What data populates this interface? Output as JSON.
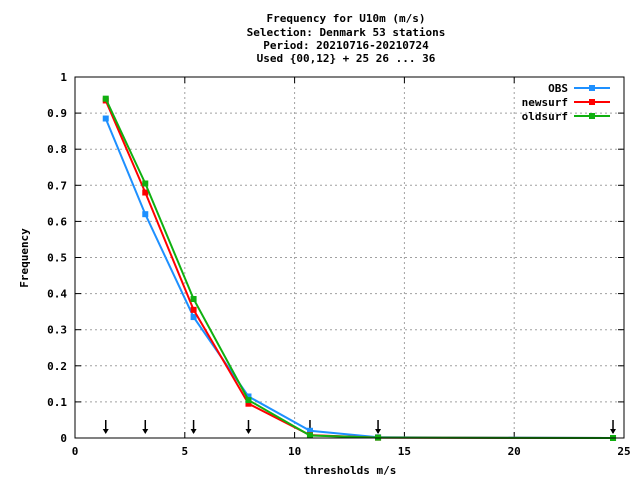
{
  "chart_data": {
    "type": "line",
    "title_lines": [
      "Frequency  for U10m (m/s)",
      "Selection: Denmark     53 stations",
      "Period: 20210716-20210724",
      "Used {00,12} + 25 26 ... 36"
    ],
    "xlabel": "thresholds m/s",
    "ylabel": "Frequency",
    "xlim": [
      0,
      25
    ],
    "ylim": [
      0,
      1
    ],
    "x_ticks": [
      0,
      5,
      10,
      15,
      20,
      25
    ],
    "y_ticks": [
      0,
      0.1,
      0.2,
      0.3,
      0.4,
      0.5,
      0.6,
      0.7,
      0.8,
      0.9,
      1
    ],
    "grid": true,
    "legend_position": "top-right",
    "threshold_markers": [
      1.4,
      3.2,
      5.4,
      7.9,
      10.7,
      13.8,
      24.5
    ],
    "x": [
      1.4,
      3.2,
      5.4,
      7.9,
      10.7,
      13.8,
      24.5
    ],
    "series": [
      {
        "name": "OBS",
        "color": "#1e90ff",
        "values": [
          0.885,
          0.62,
          0.335,
          0.115,
          0.02,
          0.002,
          0.0
        ]
      },
      {
        "name": "newsurf",
        "color": "#ff0000",
        "values": [
          0.935,
          0.68,
          0.355,
          0.095,
          0.008,
          0.001,
          0.0
        ]
      },
      {
        "name": "oldsurf",
        "color": "#10b010",
        "values": [
          0.94,
          0.705,
          0.385,
          0.105,
          0.007,
          0.001,
          0.0
        ]
      }
    ]
  }
}
